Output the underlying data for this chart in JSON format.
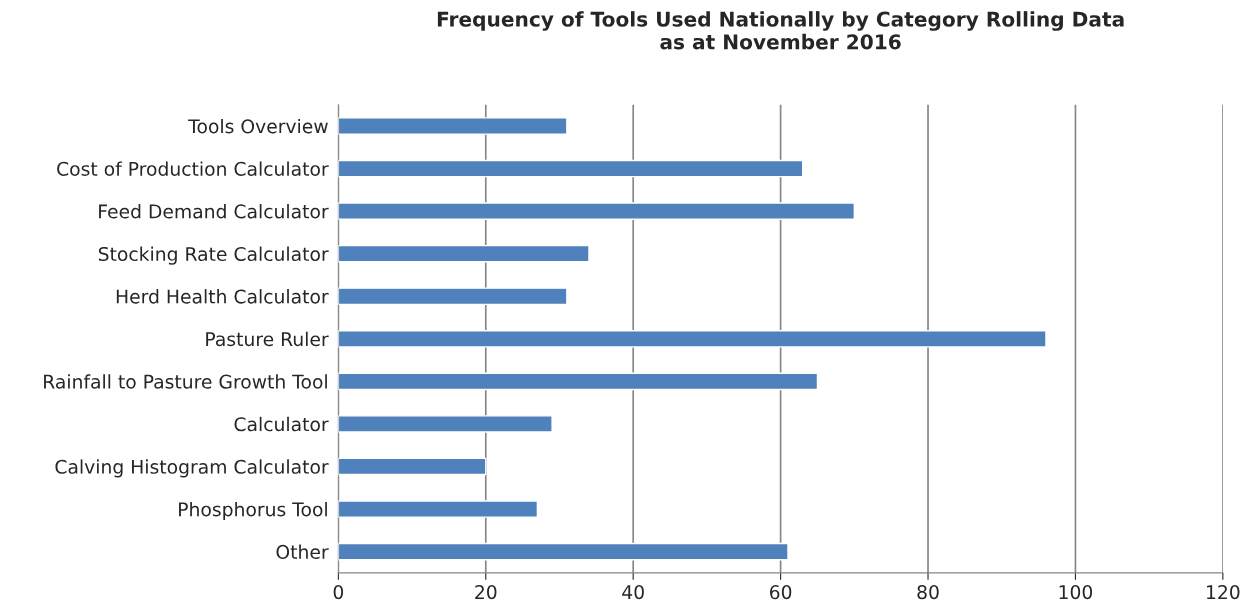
{
  "chart_data": {
    "type": "bar",
    "orientation": "horizontal",
    "title": "Frequency of Tools Used Nationally by Category Rolling Data\nas at November 2016",
    "categories": [
      "Tools Overview",
      "Cost of Production Calculator",
      "Feed Demand Calculator",
      "Stocking Rate Calculator",
      "Herd Health Calculator",
      "Pasture Ruler",
      "Rainfall to Pasture Growth Tool",
      "Calculator",
      "Calving Histogram Calculator",
      "Phosphorus Tool",
      "Other"
    ],
    "values": [
      31,
      63,
      70,
      34,
      31,
      96,
      65,
      29,
      20,
      27,
      61
    ],
    "color": "#4f81bd",
    "xlim": [
      0,
      120
    ],
    "xticks": [
      0,
      20,
      40,
      60,
      80,
      100,
      120
    ],
    "grid": "x"
  }
}
